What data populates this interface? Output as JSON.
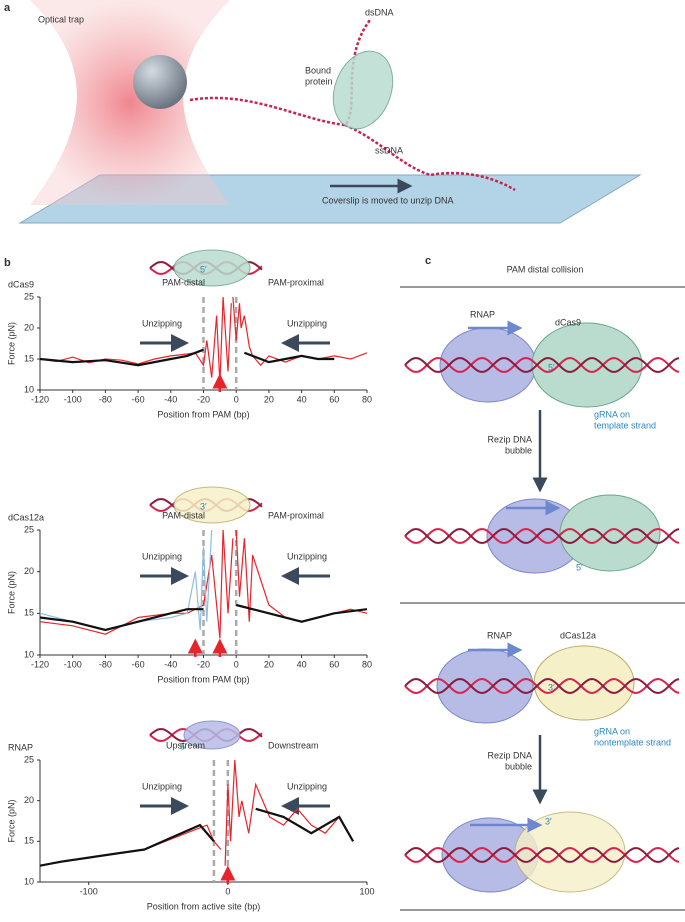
{
  "panel_a": {
    "label": "a",
    "optical_trap": "Optical trap",
    "dsdna": "dsDNA",
    "bound_protein": [
      "Bound",
      "protein"
    ],
    "ssdna": "ssDNA",
    "coverslip": "Coverslip is moved to unzip DNA"
  },
  "panel_b": {
    "label": "b"
  },
  "panel_c": {
    "label": "c",
    "title": "PAM distal collision",
    "top": {
      "rnap": "RNAP",
      "protein": "dCas9",
      "end": "5′",
      "grna": [
        "gRNA on",
        "template strand"
      ],
      "step": [
        "Rezip DNA",
        "bubble"
      ],
      "end2": "5′"
    },
    "bottom": {
      "rnap": "RNAP",
      "protein": "dCas12a",
      "end": "3′",
      "grna": [
        "gRNA on",
        "nontemplate strand"
      ],
      "step": [
        "Rezip DNA",
        "bubble"
      ],
      "end2": "3′"
    }
  },
  "chart_data": [
    {
      "type": "line",
      "title": "dCas9",
      "xlabel": "Position from PAM (bp)",
      "ylabel": "Force (pN)",
      "end_label": "5′",
      "annotations": {
        "left": "PAM-distal",
        "right": "PAM-proximal",
        "unzip_left": "Unzipping",
        "unzip_right": "Unzipping"
      },
      "xlim": [
        -120,
        80
      ],
      "xticks": [
        -120,
        -100,
        -80,
        -60,
        -40,
        -20,
        0,
        20,
        40,
        60,
        80
      ],
      "ylim": [
        10,
        25
      ],
      "yticks": [
        10,
        15,
        20,
        25
      ],
      "markers": [
        -20,
        0
      ],
      "arrows": [
        -10
      ],
      "series": [
        {
          "color": "#e8242b",
          "x": [
            -120,
            -110,
            -100,
            -90,
            -80,
            -70,
            -60,
            -50,
            -40,
            -30,
            -25,
            -20,
            -18,
            -15,
            -12,
            -10,
            -8,
            -5,
            -3
          ],
          "values": [
            15,
            14.6,
            15.3,
            14.4,
            15,
            14.8,
            14.2,
            15,
            15.5,
            15.8,
            16,
            14,
            18,
            12,
            22,
            11,
            25,
            13,
            24
          ]
        },
        {
          "color": "#e8242b",
          "x": [
            -2,
            0,
            2,
            3,
            5,
            8,
            10,
            15,
            20,
            30,
            40,
            50,
            60,
            70,
            80
          ],
          "values": [
            25,
            18,
            24,
            20,
            22,
            17,
            15.5,
            14,
            15.5,
            14.5,
            15.5,
            15,
            15.5,
            15,
            16
          ]
        },
        {
          "color": "#111111",
          "x": [
            -120,
            -100,
            -80,
            -60,
            -40,
            -30,
            -20
          ],
          "values": [
            15,
            14.5,
            14.8,
            14,
            15,
            15.5,
            16.5
          ]
        },
        {
          "color": "#111111",
          "x": [
            5,
            10,
            20,
            30,
            40,
            50,
            60
          ],
          "values": [
            16,
            15.5,
            14.5,
            15,
            15.5,
            15,
            15
          ]
        }
      ]
    },
    {
      "type": "line",
      "title": "dCas12a",
      "xlabel": "Position from PAM (bp)",
      "ylabel": "Force (pN)",
      "end_label": "3′",
      "annotations": {
        "left": "PAM-distal",
        "right": "PAM-proximal",
        "unzip_left": "Unzipping",
        "unzip_right": "Unzipping"
      },
      "xlim": [
        -120,
        80
      ],
      "xticks": [
        -120,
        -100,
        -80,
        -60,
        -40,
        -20,
        0,
        20,
        40,
        60,
        80
      ],
      "ylim": [
        10,
        25
      ],
      "yticks": [
        10,
        15,
        20,
        25
      ],
      "markers": [
        -20,
        0
      ],
      "arrows": [
        -25,
        -10
      ],
      "series": [
        {
          "color": "#e8242b",
          "x": [
            -120,
            -100,
            -80,
            -60,
            -40,
            -30,
            -20,
            -15,
            -10,
            -8,
            -5,
            -2
          ],
          "values": [
            14,
            13.5,
            12.5,
            14.5,
            15,
            15,
            16,
            22,
            12,
            25,
            15,
            24
          ]
        },
        {
          "color": "#8fbde0",
          "x": [
            -120,
            -100,
            -80,
            -60,
            -40,
            -30,
            -25,
            -22,
            -20,
            -18,
            -15
          ],
          "values": [
            15,
            14,
            13,
            14,
            14.5,
            15,
            20,
            13,
            23,
            14,
            25
          ]
        },
        {
          "color": "#e8242b",
          "x": [
            0,
            2,
            5,
            8,
            10,
            20,
            30,
            40,
            50,
            60,
            70,
            80
          ],
          "values": [
            25,
            17,
            24,
            14,
            22,
            16,
            14.5,
            14,
            14.5,
            15,
            15.5,
            15
          ]
        },
        {
          "color": "#111111",
          "x": [
            -120,
            -100,
            -80,
            -60,
            -40,
            -30,
            -20
          ],
          "values": [
            14.5,
            14,
            13,
            14,
            15,
            15.5,
            15.5
          ]
        },
        {
          "color": "#111111",
          "x": [
            0,
            10,
            20,
            40,
            60,
            80
          ],
          "values": [
            16,
            15.5,
            15,
            14,
            15,
            15.5
          ]
        }
      ]
    },
    {
      "type": "line",
      "title": "RNAP",
      "xlabel": "Position from active site (bp)",
      "ylabel": "Force (pN)",
      "end_label": "5′",
      "annotations": {
        "left": "Upstream",
        "right": "Downstream",
        "unzip_left": "Unzipping",
        "unzip_right": "Unzipping"
      },
      "xlim": [
        -135,
        100
      ],
      "xticks": [
        -100,
        0,
        100
      ],
      "ylim": [
        10,
        25
      ],
      "yticks": [
        10,
        15,
        20,
        25
      ],
      "markers": [
        -10,
        0
      ],
      "arrows": [
        0
      ],
      "series": [
        {
          "color": "#e8242b",
          "x": [
            -135,
            -100,
            -60,
            -30,
            -15,
            -10,
            -5
          ],
          "values": [
            12,
            13,
            14,
            16,
            17,
            15,
            14
          ]
        },
        {
          "color": "#e8242b",
          "x": [
            -2,
            0,
            2,
            5,
            8,
            10,
            15,
            20,
            30,
            40,
            50,
            60,
            70,
            80,
            90
          ],
          "values": [
            12,
            22,
            15,
            25,
            18,
            20,
            16,
            22,
            18,
            17,
            19,
            17,
            16,
            18,
            15
          ]
        },
        {
          "color": "#111111",
          "x": [
            -135,
            -120,
            -100,
            -80,
            -60,
            -40,
            -20,
            -10
          ],
          "values": [
            12,
            12.5,
            13,
            13.5,
            14,
            15.5,
            17,
            15
          ]
        },
        {
          "color": "#111111",
          "x": [
            20,
            40,
            60,
            80,
            90
          ],
          "values": [
            19,
            18,
            16,
            18,
            15
          ]
        }
      ]
    }
  ]
}
